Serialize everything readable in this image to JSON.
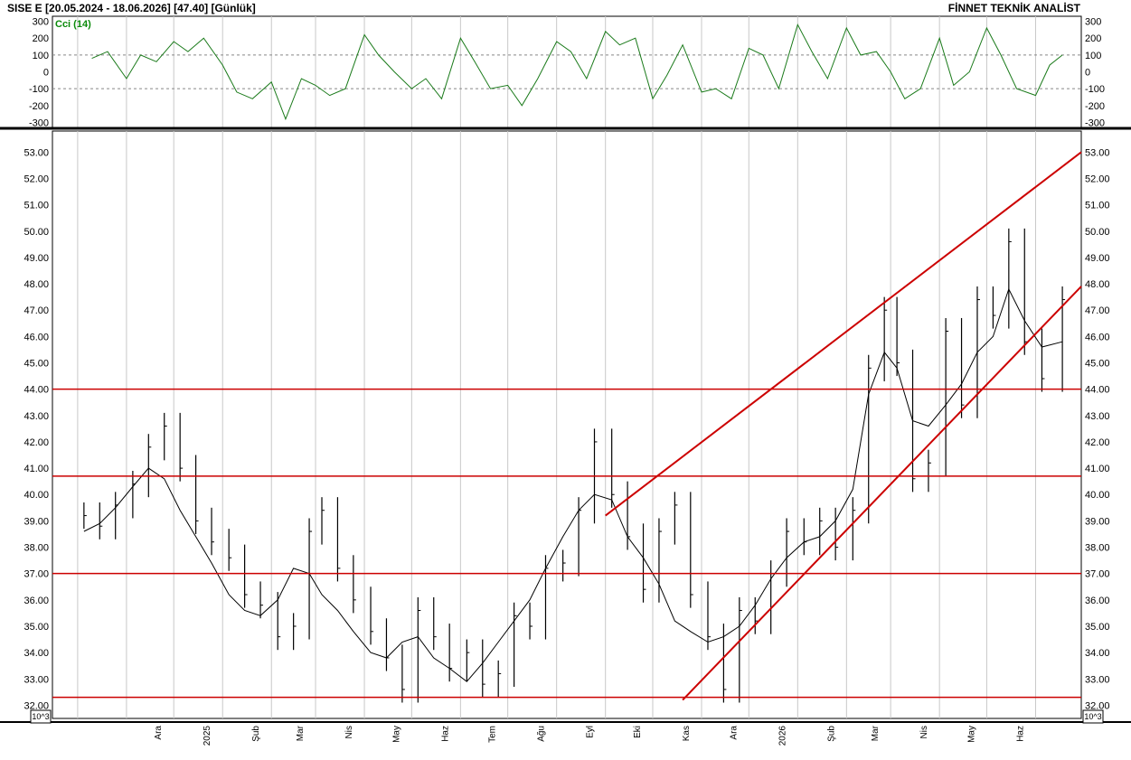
{
  "header": {
    "title": "SISE  E  [20.05.2024 - 18.06.2026]  [47.40]  [Günlük]",
    "brand": "FİNNET TEKNİK ANALİST",
    "unit_label": "10^3"
  },
  "colors": {
    "price": "#000000",
    "sma": "#000000",
    "cci": "#1a7a1a",
    "lines": "#cc0000",
    "grid": "#c8c8c8"
  },
  "chart_data": [
    {
      "type": "line",
      "title": "Cci (14)",
      "ylim": [
        -330,
        330
      ],
      "yticks": [
        300,
        200,
        100,
        0,
        -100,
        -200,
        -300
      ],
      "levels": [
        100,
        -100
      ],
      "x": [
        "2024-10-10",
        "2024-10-20",
        "2024-11-01",
        "2024-11-10",
        "2024-11-20",
        "2024-12-01",
        "2024-12-10",
        "2024-12-20",
        "2025-01-01",
        "2025-01-10",
        "2025-01-20",
        "2025-02-01",
        "2025-02-10",
        "2025-02-20",
        "2025-03-01",
        "2025-03-10",
        "2025-03-20",
        "2025-04-01",
        "2025-04-10",
        "2025-04-20",
        "2025-05-01",
        "2025-05-10",
        "2025-05-20",
        "2025-06-01",
        "2025-06-10",
        "2025-06-20",
        "2025-07-01",
        "2025-07-10",
        "2025-07-20",
        "2025-08-01",
        "2025-08-10",
        "2025-08-20",
        "2025-09-01",
        "2025-09-10",
        "2025-09-20",
        "2025-10-01",
        "2025-10-10",
        "2025-10-20",
        "2025-11-01",
        "2025-11-10",
        "2025-11-20",
        "2025-12-01",
        "2025-12-10",
        "2025-12-20",
        "2026-01-01",
        "2026-01-10",
        "2026-01-20",
        "2026-02-01",
        "2026-02-10",
        "2026-02-20",
        "2026-03-01",
        "2026-03-10",
        "2026-03-20",
        "2026-04-01",
        "2026-04-10",
        "2026-04-20",
        "2026-05-01",
        "2026-05-10",
        "2026-05-20",
        "2026-06-01",
        "2026-06-10",
        "2026-06-18"
      ],
      "values": [
        80,
        120,
        -40,
        100,
        60,
        180,
        120,
        200,
        40,
        -120,
        -160,
        -60,
        -280,
        -40,
        -80,
        -140,
        -100,
        220,
        100,
        0,
        -100,
        -40,
        -160,
        200,
        60,
        -100,
        -80,
        -200,
        -40,
        180,
        120,
        -40,
        240,
        160,
        200,
        -160,
        -20,
        160,
        -120,
        -100,
        -160,
        140,
        100,
        -100,
        280,
        120,
        -40,
        260,
        100,
        120,
        0,
        -160,
        -100,
        200,
        -80,
        0,
        260,
        100,
        -100,
        -140,
        40,
        100
      ]
    },
    {
      "type": "bar",
      "ylim": [
        31.5,
        53.8
      ],
      "yticks": [
        53.0,
        52.0,
        51.0,
        50.0,
        49.0,
        48.0,
        47.0,
        46.0,
        45.0,
        44.0,
        43.0,
        42.0,
        41.0,
        40.0,
        39.0,
        38.0,
        37.0,
        36.0,
        35.0,
        34.0,
        33.0,
        32.0
      ],
      "xticks": [
        "Ara",
        "2025",
        "Şub",
        "Mar",
        "Nis",
        "May",
        "Haz",
        "Tem",
        "Ağu",
        "Eyl",
        "Eki",
        "Kas",
        "Ara",
        "2026",
        "Şub",
        "Mar",
        "Nis",
        "May",
        "Haz"
      ],
      "x": [
        "2024-10-05",
        "2024-10-15",
        "2024-10-25",
        "2024-11-05",
        "2024-11-15",
        "2024-11-25",
        "2024-12-05",
        "2024-12-15",
        "2024-12-25",
        "2025-01-05",
        "2025-01-15",
        "2025-01-25",
        "2025-02-05",
        "2025-02-15",
        "2025-02-25",
        "2025-03-05",
        "2025-03-15",
        "2025-03-25",
        "2025-04-05",
        "2025-04-15",
        "2025-04-25",
        "2025-05-05",
        "2025-05-15",
        "2025-05-25",
        "2025-06-05",
        "2025-06-15",
        "2025-06-25",
        "2025-07-05",
        "2025-07-15",
        "2025-07-25",
        "2025-08-05",
        "2025-08-15",
        "2025-08-25",
        "2025-09-05",
        "2025-09-15",
        "2025-09-25",
        "2025-10-05",
        "2025-10-15",
        "2025-10-25",
        "2025-11-05",
        "2025-11-15",
        "2025-11-25",
        "2025-12-05",
        "2025-12-15",
        "2025-12-25",
        "2026-01-05",
        "2026-01-15",
        "2026-01-25",
        "2026-02-05",
        "2026-02-15",
        "2026-02-25",
        "2026-03-05",
        "2026-03-15",
        "2026-03-25",
        "2026-04-05",
        "2026-04-15",
        "2026-04-25",
        "2026-05-05",
        "2026-05-15",
        "2026-05-25",
        "2026-06-05",
        "2026-06-18"
      ],
      "close": [
        39.2,
        38.8,
        39.6,
        40.4,
        41.8,
        42.6,
        41.0,
        39.0,
        38.2,
        37.6,
        36.2,
        35.8,
        34.6,
        35.0,
        38.6,
        39.4,
        37.2,
        36.0,
        34.8,
        33.8,
        32.6,
        35.6,
        34.6,
        33.4,
        34.0,
        32.8,
        33.2,
        35.4,
        35.0,
        37.2,
        37.4,
        39.4,
        42.0,
        40.0,
        38.4,
        36.4,
        38.6,
        39.6,
        36.2,
        34.6,
        32.6,
        35.6,
        35.2,
        37.0,
        38.6,
        38.2,
        39.0,
        38.0,
        39.4,
        44.8,
        47.0,
        45.0,
        40.6,
        41.2,
        46.2,
        43.4,
        47.4,
        46.8,
        49.6,
        45.8,
        44.4,
        47.4
      ],
      "series": [
        {
          "name": "",
          "kind": "sma",
          "values": [
            38.6,
            38.9,
            39.5,
            40.3,
            41.0,
            40.6,
            39.4,
            38.4,
            37.4,
            36.2,
            35.6,
            35.4,
            36.0,
            37.2,
            37.0,
            36.2,
            35.6,
            34.8,
            34.0,
            33.8,
            34.4,
            34.6,
            33.8,
            33.4,
            32.9,
            33.6,
            34.4,
            35.2,
            36.0,
            37.2,
            38.4,
            39.4,
            40.0,
            39.8,
            38.4,
            37.6,
            36.6,
            35.2,
            34.8,
            34.4,
            34.6,
            35.0,
            35.8,
            36.8,
            37.6,
            38.2,
            38.4,
            39.0,
            40.2,
            43.8,
            45.4,
            44.8,
            42.8,
            42.6,
            43.4,
            44.2,
            45.4,
            46.0,
            47.8,
            46.6,
            45.6,
            45.8
          ]
        }
      ],
      "hlines": [
        44.0,
        40.7,
        37.0,
        32.3
      ],
      "trendlines": [
        {
          "from": [
            "2025-09-01",
            39.2
          ],
          "to": [
            "2026-06-30",
            53.0
          ]
        },
        {
          "from": [
            "2025-10-20",
            32.2
          ],
          "to": [
            "2026-06-30",
            47.9
          ]
        }
      ]
    }
  ]
}
